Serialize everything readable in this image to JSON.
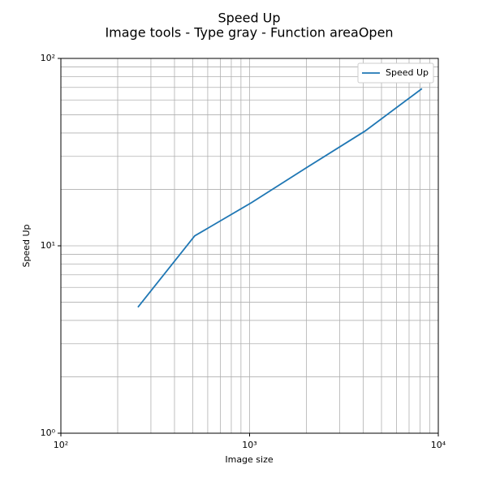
{
  "chart_data": {
    "type": "line",
    "title": "Speed Up",
    "subtitle": "Image tools - Type gray - Function areaOpen",
    "x_label": "Image size",
    "y_label": "Speed Up",
    "x": [
      256,
      512,
      1024,
      2048,
      4096,
      8192
    ],
    "series": [
      {
        "name": "Speed Up",
        "color": "#1f77b4",
        "values": [
          4.7,
          11.3,
          17,
          26.5,
          41,
          69
        ]
      }
    ],
    "log_x": true,
    "log_y": true,
    "xlim": [
      100,
      10000
    ],
    "ylim": [
      1,
      100
    ],
    "xticks": [
      {
        "value": 100,
        "label": "10²"
      },
      {
        "value": 1000,
        "label": "10³"
      },
      {
        "value": 10000,
        "label": "10⁴"
      }
    ],
    "yticks": [
      {
        "value": 1,
        "label": "10⁰"
      },
      {
        "value": 10,
        "label": "10¹"
      },
      {
        "value": 100,
        "label": "10²"
      }
    ],
    "xminorticks": [
      200,
      300,
      400,
      500,
      600,
      700,
      800,
      900,
      2000,
      3000,
      4000,
      5000,
      6000,
      7000,
      8000,
      9000
    ],
    "yminorticks": [
      2,
      3,
      4,
      5,
      6,
      7,
      8,
      9,
      20,
      30,
      40,
      50,
      60,
      70,
      80,
      90
    ],
    "grid": true,
    "legend": "upper right"
  }
}
